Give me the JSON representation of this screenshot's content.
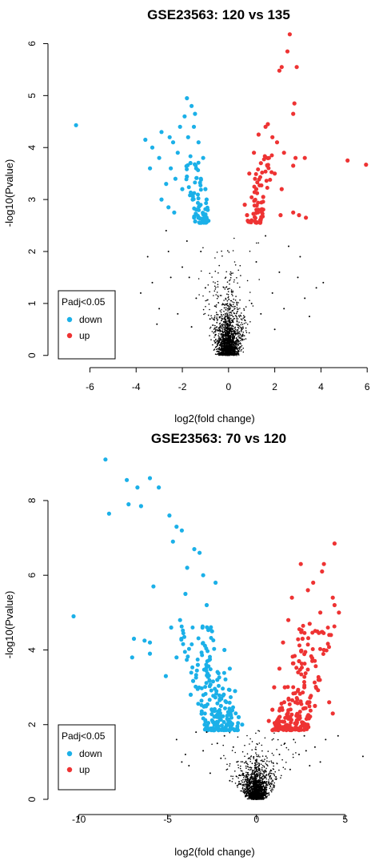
{
  "chart_data": [
    {
      "type": "scatter",
      "title": "GSE23563: 120 vs 135",
      "xlabel": "log2(fold change)",
      "ylabel": "-log10(Pvalue)",
      "xlim": [
        -7.4,
        6.2
      ],
      "ylim": [
        -0.05,
        6.3
      ],
      "xticks": [
        -6,
        -4,
        -2,
        0,
        2,
        4,
        6
      ],
      "yticks": [
        0,
        1,
        2,
        3,
        4,
        5,
        6
      ],
      "significance_threshold": 2.55,
      "legend": {
        "title": "Padj<0.05",
        "position": "bottom-left",
        "entries": [
          {
            "label": "down",
            "color": "#1BB0E8"
          },
          {
            "label": "up",
            "color": "#EE3333"
          }
        ]
      },
      "colors": {
        "down": "#1BB0E8",
        "up": "#EE3333",
        "ns": "#000000"
      },
      "series": [
        {
          "label": "down",
          "color": "#1BB0E8",
          "points": [
            [
              -6.6,
              4.43
            ],
            [
              -3.6,
              4.15
            ],
            [
              -3.3,
              4.0
            ],
            [
              -3.0,
              3.8
            ],
            [
              -2.9,
              4.3
            ],
            [
              -2.7,
              3.3
            ],
            [
              -2.55,
              4.2
            ],
            [
              -2.5,
              3.6
            ],
            [
              -2.4,
              4.1
            ],
            [
              -2.3,
              3.4
            ],
            [
              -2.2,
              3.9
            ],
            [
              -2.1,
              4.4
            ],
            [
              -2.0,
              3.2
            ],
            [
              -1.9,
              4.6
            ],
            [
              -1.8,
              4.95
            ],
            [
              -1.75,
              4.2
            ],
            [
              -1.6,
              4.8
            ],
            [
              -1.5,
              4.4
            ],
            [
              -1.45,
              4.65
            ],
            [
              -1.4,
              3.6
            ],
            [
              -1.3,
              4.1
            ],
            [
              -2.9,
              3.0
            ],
            [
              -2.6,
              2.85
            ],
            [
              -3.4,
              3.6
            ],
            [
              -2.35,
              2.75
            ],
            [
              -1.2,
              3.4
            ],
            [
              -1.1,
              3.8
            ],
            [
              -1.0,
              3.2
            ],
            [
              -0.95,
              3.0
            ],
            [
              -0.9,
              2.8
            ],
            [
              -1.05,
              2.65
            ],
            [
              -1.55,
              3.0
            ]
          ]
        },
        {
          "label": "up",
          "color": "#EE3333",
          "points": [
            [
              2.65,
              6.18
            ],
            [
              2.55,
              5.85
            ],
            [
              2.3,
              5.55
            ],
            [
              2.2,
              5.48
            ],
            [
              2.95,
              5.55
            ],
            [
              2.85,
              4.85
            ],
            [
              2.8,
              4.65
            ],
            [
              1.7,
              4.45
            ],
            [
              1.6,
              4.4
            ],
            [
              1.3,
              4.25
            ],
            [
              1.9,
              4.2
            ],
            [
              2.1,
              4.1
            ],
            [
              2.4,
              3.9
            ],
            [
              2.9,
              3.8
            ],
            [
              3.3,
              3.8
            ],
            [
              2.0,
              3.5
            ],
            [
              1.4,
              3.7
            ],
            [
              1.1,
              3.9
            ],
            [
              0.9,
              3.5
            ],
            [
              1.2,
              3.2
            ],
            [
              1.5,
              3.05
            ],
            [
              2.3,
              3.2
            ],
            [
              2.8,
              3.65
            ],
            [
              5.15,
              3.75
            ],
            [
              5.95,
              3.67
            ],
            [
              2.25,
              2.7
            ],
            [
              2.8,
              2.75
            ],
            [
              3.05,
              2.7
            ],
            [
              3.35,
              2.65
            ],
            [
              0.7,
              2.9
            ],
            [
              0.8,
              2.7
            ],
            [
              1.0,
              2.6
            ]
          ]
        },
        {
          "label": "ns",
          "color": "#000000",
          "points": [
            [
              -3.8,
              1.2
            ],
            [
              -3.0,
              0.9
            ],
            [
              -3.5,
              1.9
            ],
            [
              -2.5,
              1.5
            ],
            [
              -2.2,
              0.8
            ],
            [
              -2.0,
              1.7
            ],
            [
              -1.6,
              0.55
            ],
            [
              -1.8,
              2.2
            ],
            [
              -2.7,
              2.4
            ],
            [
              -3.3,
              1.4
            ],
            [
              -1.4,
              1.1
            ],
            [
              -1.2,
              2.0
            ],
            [
              -1.0,
              1.3
            ],
            [
              -0.8,
              0.7
            ],
            [
              3.3,
              1.1
            ],
            [
              3.0,
              1.5
            ],
            [
              2.6,
              2.1
            ],
            [
              2.4,
              0.9
            ],
            [
              2.2,
              1.6
            ],
            [
              1.9,
              1.2
            ],
            [
              1.6,
              2.3
            ],
            [
              1.4,
              0.8
            ],
            [
              1.2,
              1.8
            ],
            [
              1.0,
              1.0
            ],
            [
              3.8,
              1.3
            ],
            [
              4.1,
              1.4
            ],
            [
              3.5,
              0.75
            ],
            [
              -3.1,
              0.6
            ],
            [
              -2.6,
              2.0
            ],
            [
              2.0,
              0.5
            ],
            [
              3.1,
              1.9
            ],
            [
              -1.7,
              1.5
            ]
          ]
        }
      ]
    },
    {
      "type": "scatter",
      "title": "GSE23563: 70 vs 120",
      "xlabel": "log2(fold change)",
      "ylabel": "-log10(Pvalue)",
      "xlim": [
        -11.2,
        6.5
      ],
      "ylim": [
        -0.15,
        9.5
      ],
      "xticks": [
        -10,
        -5,
        0,
        5
      ],
      "yticks": [
        0,
        2,
        4,
        6,
        8
      ],
      "significance_threshold": 1.85,
      "legend": {
        "title": "Padj<0.05",
        "position": "bottom-left",
        "entries": [
          {
            "label": "down",
            "color": "#1BB0E8"
          },
          {
            "label": "up",
            "color": "#EE3333"
          }
        ]
      },
      "colors": {
        "down": "#1BB0E8",
        "up": "#EE3333",
        "ns": "#000000"
      },
      "series": [
        {
          "label": "down",
          "color": "#1BB0E8",
          "points": [
            [
              -8.5,
              9.1
            ],
            [
              -8.3,
              7.65
            ],
            [
              -7.3,
              8.55
            ],
            [
              -7.2,
              7.9
            ],
            [
              -6.7,
              8.35
            ],
            [
              -6.5,
              7.85
            ],
            [
              -6.0,
              8.6
            ],
            [
              -5.5,
              8.35
            ],
            [
              -5.8,
              5.7
            ],
            [
              -4.9,
              7.6
            ],
            [
              -4.5,
              7.3
            ],
            [
              -4.2,
              7.2
            ],
            [
              -4.7,
              6.9
            ],
            [
              -10.3,
              4.9
            ],
            [
              -6.3,
              4.25
            ],
            [
              -6.0,
              4.2
            ],
            [
              -6.0,
              3.9
            ],
            [
              -6.9,
              4.3
            ],
            [
              -7.0,
              3.8
            ],
            [
              -5.1,
              3.3
            ],
            [
              -4.5,
              3.8
            ],
            [
              -4.3,
              4.8
            ],
            [
              -4.0,
              5.5
            ],
            [
              -3.5,
              6.7
            ],
            [
              -3.2,
              6.6
            ],
            [
              -3.0,
              6.0
            ],
            [
              -2.8,
              5.2
            ],
            [
              -2.5,
              4.5
            ],
            [
              -2.2,
              3.2
            ],
            [
              -2.0,
              2.5
            ],
            [
              -3.7,
              2.8
            ],
            [
              -4.8,
              4.6
            ],
            [
              -3.9,
              6.2
            ],
            [
              -1.8,
              4.0
            ],
            [
              -1.5,
              3.5
            ],
            [
              -1.2,
              2.9
            ],
            [
              -1.0,
              2.2
            ],
            [
              -0.8,
              2.0
            ],
            [
              -2.3,
              5.8
            ],
            [
              -3.3,
              3.6
            ]
          ]
        },
        {
          "label": "up",
          "color": "#EE3333",
          "points": [
            [
              4.4,
              6.85
            ],
            [
              3.8,
              6.3
            ],
            [
              2.5,
              6.3
            ],
            [
              3.7,
              6.1
            ],
            [
              3.2,
              5.8
            ],
            [
              2.9,
              5.6
            ],
            [
              4.3,
              5.4
            ],
            [
              4.4,
              5.2
            ],
            [
              4.65,
              5.0
            ],
            [
              4.2,
              4.4
            ],
            [
              3.8,
              4.0
            ],
            [
              3.5,
              3.2
            ],
            [
              2.7,
              3.0
            ],
            [
              4.1,
              2.6
            ],
            [
              4.3,
              2.3
            ],
            [
              2.0,
              5.4
            ],
            [
              1.8,
              4.8
            ],
            [
              1.5,
              4.2
            ],
            [
              1.3,
              3.5
            ],
            [
              1.0,
              3.0
            ],
            [
              0.9,
              2.4
            ],
            [
              0.7,
              2.1
            ],
            [
              2.2,
              2.6
            ],
            [
              3.0,
              4.7
            ],
            [
              3.6,
              5.0
            ],
            [
              2.4,
              3.7
            ],
            [
              1.9,
              2.2
            ],
            [
              3.3,
              2.5
            ],
            [
              2.6,
              4.3
            ],
            [
              1.6,
              3.0
            ]
          ]
        },
        {
          "label": "ns",
          "color": "#000000",
          "points": [
            [
              -4.2,
              1.0
            ],
            [
              -3.8,
              0.9
            ],
            [
              -3.4,
              1.8
            ],
            [
              -3.0,
              1.3
            ],
            [
              -2.6,
              0.7
            ],
            [
              -2.2,
              1.5
            ],
            [
              -2.0,
              1.1
            ],
            [
              -1.8,
              1.7
            ],
            [
              -1.5,
              0.5
            ],
            [
              -1.3,
              1.4
            ],
            [
              -4.5,
              1.6
            ],
            [
              -4.0,
              1.2
            ],
            [
              1.3,
              1.2
            ],
            [
              1.6,
              1.5
            ],
            [
              1.9,
              0.8
            ],
            [
              2.1,
              1.6
            ],
            [
              2.4,
              1.2
            ],
            [
              2.7,
              1.7
            ],
            [
              3.0,
              0.9
            ],
            [
              3.3,
              1.4
            ],
            [
              3.6,
              1.0
            ],
            [
              3.9,
              1.6
            ],
            [
              4.6,
              1.7
            ],
            [
              6.0,
              1.15
            ],
            [
              -2.8,
              1.8
            ],
            [
              2.8,
              1.3
            ],
            [
              -1.1,
              1.0
            ],
            [
              1.1,
              0.6
            ]
          ]
        }
      ]
    }
  ]
}
